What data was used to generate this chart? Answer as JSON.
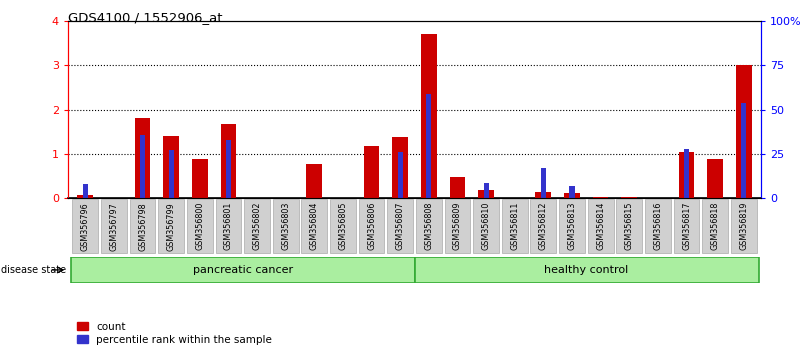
{
  "title": "GDS4100 / 1552906_at",
  "samples": [
    "GSM356796",
    "GSM356797",
    "GSM356798",
    "GSM356799",
    "GSM356800",
    "GSM356801",
    "GSM356802",
    "GSM356803",
    "GSM356804",
    "GSM356805",
    "GSM356806",
    "GSM356807",
    "GSM356808",
    "GSM356809",
    "GSM356810",
    "GSM356811",
    "GSM356812",
    "GSM356813",
    "GSM356814",
    "GSM356815",
    "GSM356816",
    "GSM356817",
    "GSM356818",
    "GSM356819"
  ],
  "count_values": [
    0.08,
    0.0,
    1.82,
    1.4,
    0.88,
    1.68,
    0.0,
    0.0,
    0.78,
    0.0,
    1.18,
    1.38,
    3.72,
    0.48,
    0.18,
    0.0,
    0.15,
    0.12,
    0.02,
    0.02,
    0.0,
    1.05,
    0.88,
    3.0
  ],
  "percentile_values_pct": [
    8.0,
    0.0,
    36.0,
    27.0,
    0.0,
    33.0,
    0.0,
    0.0,
    0.0,
    0.0,
    0.0,
    26.0,
    59.0,
    0.0,
    8.5,
    0.0,
    17.0,
    7.0,
    0.0,
    0.0,
    0.0,
    28.0,
    0.0,
    54.0
  ],
  "pancreatic_count": 12,
  "healthy_count": 12,
  "ylim_left": [
    0,
    4
  ],
  "ylim_right": [
    0,
    100
  ],
  "yticks_left": [
    0,
    1,
    2,
    3,
    4
  ],
  "yticks_right": [
    0,
    25,
    50,
    75,
    100
  ],
  "ytick_labels_right": [
    "0",
    "25",
    "50",
    "75",
    "100%"
  ],
  "bar_color_red": "#cc0000",
  "bar_color_blue": "#3333cc",
  "pancreatic_label": "pancreatic cancer",
  "healthy_label": "healthy control",
  "disease_state_label": "disease state",
  "legend_count": "count",
  "legend_percentile": "percentile rank within the sample",
  "xticklabel_bg": "#d0d0d0",
  "band_color_light": "#aaeea0",
  "band_color_border": "#33aa33"
}
